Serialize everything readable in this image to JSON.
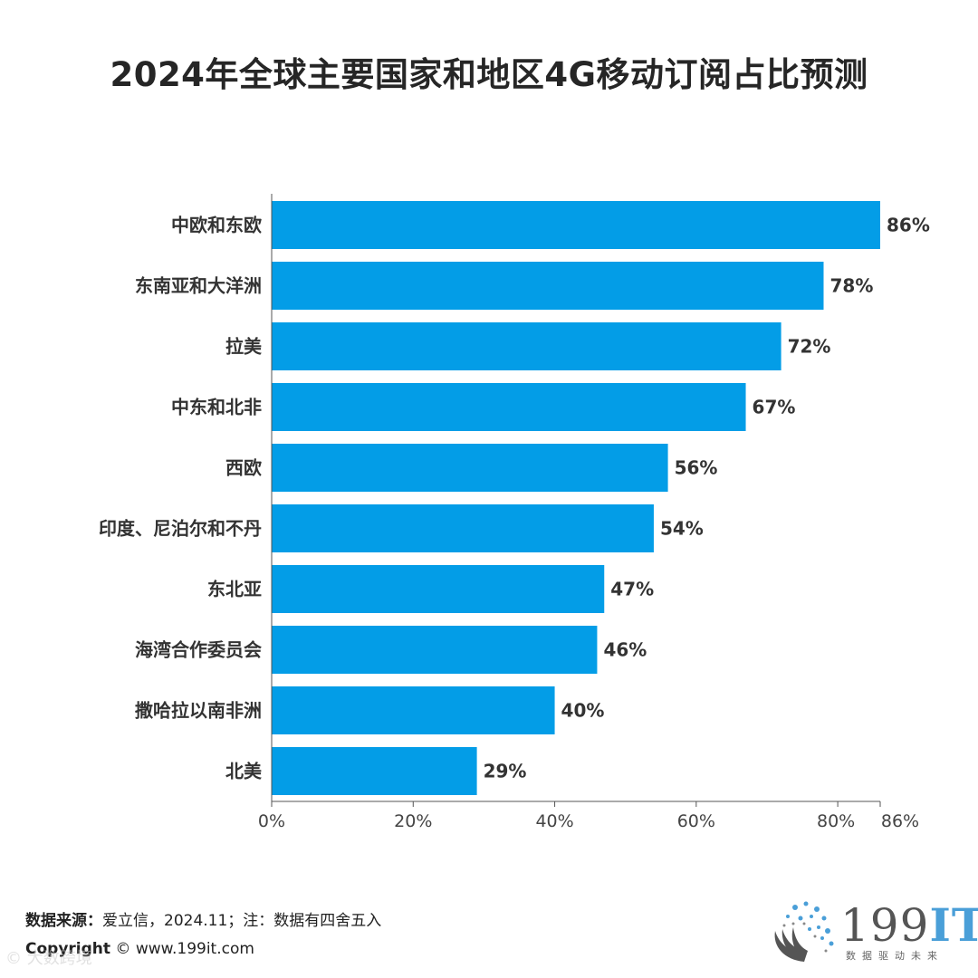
{
  "title": "2024年全球主要国家和地区4G移动订阅占比预测",
  "chart_data": {
    "type": "bar",
    "orientation": "horizontal",
    "title": "2024年全球主要国家和地区4G移动订阅占比预测",
    "categories": [
      "中欧和东欧",
      "东南亚和大洋洲",
      "拉美",
      "中东和北非",
      "西欧",
      "印度、尼泊尔和不丹",
      "东北亚",
      "海湾合作委员会",
      "撒哈拉以南非洲",
      "北美"
    ],
    "values": [
      86,
      78,
      72,
      67,
      56,
      54,
      47,
      46,
      40,
      29
    ],
    "value_labels": [
      "86%",
      "78%",
      "72%",
      "67%",
      "56%",
      "54%",
      "47%",
      "46%",
      "40%",
      "29%"
    ],
    "xlim": [
      0,
      86
    ],
    "x_ticks": [
      0,
      20,
      40,
      60,
      80,
      86
    ],
    "x_tick_labels": [
      "0%",
      "20%",
      "40%",
      "60%",
      "80%",
      "86%"
    ],
    "bar_color": "#039de7",
    "grid": false,
    "legend": "none"
  },
  "footer": {
    "source_label": "数据来源：",
    "source_text": "爱立信，2024.11；注：数据有四舍五入",
    "copyright_label": "Copyright",
    "copyright_text": "© www.199it.com",
    "watermark": "© 大数跨境"
  },
  "logo": {
    "number": "199",
    "it": "IT",
    "subtitle": "数据驱动未来"
  }
}
